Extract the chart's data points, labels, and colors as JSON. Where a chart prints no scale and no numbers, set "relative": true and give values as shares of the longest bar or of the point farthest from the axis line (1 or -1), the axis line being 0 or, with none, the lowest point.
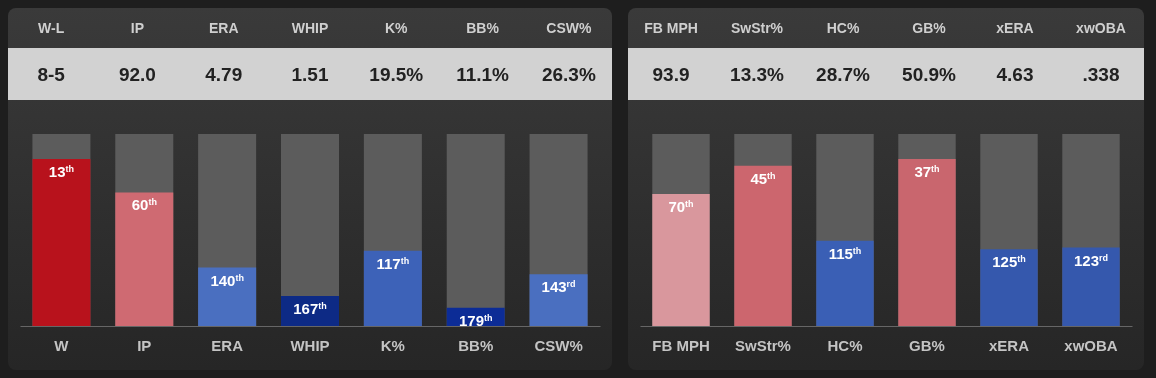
{
  "chart_data": [
    {
      "type": "other",
      "categories": [
        "W-L",
        "IP",
        "ERA",
        "WHIP",
        "K%",
        "BB%",
        "CSW%"
      ],
      "annotations": [
        "8-5",
        "92.0",
        "4.79",
        "1.51",
        "19.5%",
        "11.1%",
        "26.3%"
      ]
    },
    {
      "type": "bar",
      "relative": true,
      "categories": [
        "W",
        "IP",
        "ERA",
        "WHIP",
        "K%",
        "BB%",
        "CSW%"
      ],
      "values": [
        1,
        0.8,
        0.35,
        0.18,
        0.45,
        0.11,
        0.31
      ],
      "colors": [
        "#b8121c",
        "#cf6a72",
        "#4a6fc0",
        "#0d2a85",
        "#3d62b8",
        "#0c2c96",
        "#4a6fc0"
      ],
      "annotations": [
        {
          "text": "13$^{th}$",
          "x": "W",
          "y": 1
        },
        {
          "text": "60$^{th}$",
          "x": "IP",
          "y": 0.8
        },
        {
          "text": "140$^{th}$",
          "x": "ERA",
          "y": 0.35
        },
        {
          "text": "167$^{th}$",
          "x": "WHIP",
          "y": 0.18
        },
        {
          "text": "117$^{th}$",
          "x": "K%",
          "y": 0.45
        },
        {
          "text": "179$^{th}$",
          "x": "BB%",
          "y": 0.11
        },
        {
          "text": "143$^{rd}$",
          "x": "CSW%",
          "y": 0.31
        }
      ]
    },
    {
      "type": "other",
      "categories": [
        "FB MPH",
        "SwStr%",
        "HC%",
        "GB%",
        "xERA",
        "xwOBA"
      ],
      "annotations": [
        "93.9",
        "13.3%",
        "28.7%",
        "50.9%",
        "4.63",
        ".338"
      ]
    },
    {
      "type": "bar",
      "relative": true,
      "categories": [
        "FB MPH",
        "SwStr%",
        "HC%",
        "GB%",
        "xERA",
        "xwOBA"
      ],
      "values": [
        0.79,
        0.96,
        0.51,
        1,
        0.46,
        0.47
      ],
      "colors": [
        "#d9979d",
        "#cc666e",
        "#3a5fb5",
        "#c9666e",
        "#3558ad",
        "#3558ad"
      ],
      "annotations": [
        {
          "text": "70$^{th}$",
          "x": "FB MPH",
          "y": 0.79
        },
        {
          "text": "45$^{th}$",
          "x": "SwStr%",
          "y": 0.96
        },
        {
          "text": "115$^{th}$",
          "x": "HC%",
          "y": 0.51
        },
        {
          "text": "37$^{th}$",
          "x": "GB%",
          "y": 1
        },
        {
          "text": "125$^{th}$",
          "x": "xERA",
          "y": 0.46
        },
        {
          "text": "123$^{rd}$",
          "x": "xwOBA",
          "y": 0.47
        }
      ]
    }
  ]
}
